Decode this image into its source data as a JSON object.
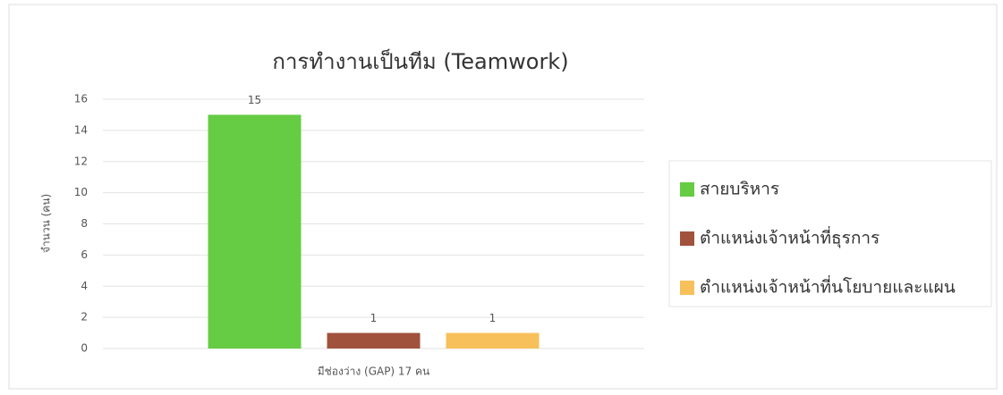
{
  "chart_data": {
    "type": "bar",
    "title": "การทำงานเป็นทีม (Teamwork)",
    "y_label": "จำนวน (คน)",
    "categories": [
      "มีช่องว่าง (GAP) 17 คน"
    ],
    "series": [
      {
        "name": "สายบริหาร",
        "color": "#66cc44",
        "values": [
          15
        ]
      },
      {
        "name": "ตำแหน่งเจ้าหน้าที่ธุรการ",
        "color": "#a0523d",
        "values": [
          1
        ]
      },
      {
        "name": "ตำแหน่งเจ้าหน้าที่นโยบายและแผน",
        "color": "#f8c05a",
        "values": [
          1
        ]
      }
    ],
    "ylim": [
      0,
      16
    ],
    "yticks": [
      0,
      2,
      4,
      6,
      8,
      10,
      12,
      14,
      16
    ],
    "grid": true,
    "legend": "right"
  }
}
